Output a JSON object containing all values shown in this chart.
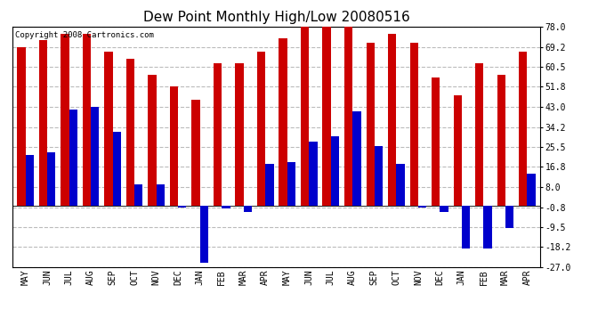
{
  "title": "Dew Point Monthly High/Low 20080516",
  "copyright": "Copyright 2008 Cartronics.com",
  "months": [
    "MAY",
    "JUN",
    "JUL",
    "AUG",
    "SEP",
    "OCT",
    "NOV",
    "DEC",
    "JAN",
    "FEB",
    "MAR",
    "APR",
    "MAY",
    "JUN",
    "JUL",
    "AUG",
    "SEP",
    "OCT",
    "NOV",
    "DEC",
    "JAN",
    "FEB",
    "MAR",
    "APR"
  ],
  "highs": [
    69.2,
    72.0,
    75.0,
    75.0,
    67.0,
    64.0,
    57.0,
    52.0,
    46.0,
    62.0,
    62.0,
    67.0,
    73.0,
    80.0,
    78.0,
    80.0,
    71.0,
    75.0,
    71.0,
    56.0,
    48.0,
    62.0,
    57.0,
    67.0
  ],
  "lows": [
    22.0,
    23.0,
    42.0,
    43.0,
    32.0,
    9.0,
    9.0,
    -1.0,
    -25.0,
    -1.5,
    -3.0,
    18.0,
    19.0,
    28.0,
    30.0,
    41.0,
    26.0,
    18.0,
    -1.0,
    -3.0,
    -19.0,
    -19.0,
    -10.0,
    14.0
  ],
  "ylim": [
    -27.0,
    78.0
  ],
  "yticks": [
    78.0,
    69.2,
    60.5,
    51.8,
    43.0,
    34.2,
    25.5,
    16.8,
    8.0,
    -0.8,
    -9.5,
    -18.2,
    -27.0
  ],
  "bar_width": 0.38,
  "high_color": "#cc0000",
  "low_color": "#0000cc",
  "bg_color": "#ffffff",
  "grid_color": "#bbbbbb",
  "title_fontsize": 11,
  "tick_fontsize": 7,
  "copyright_fontsize": 6.5
}
